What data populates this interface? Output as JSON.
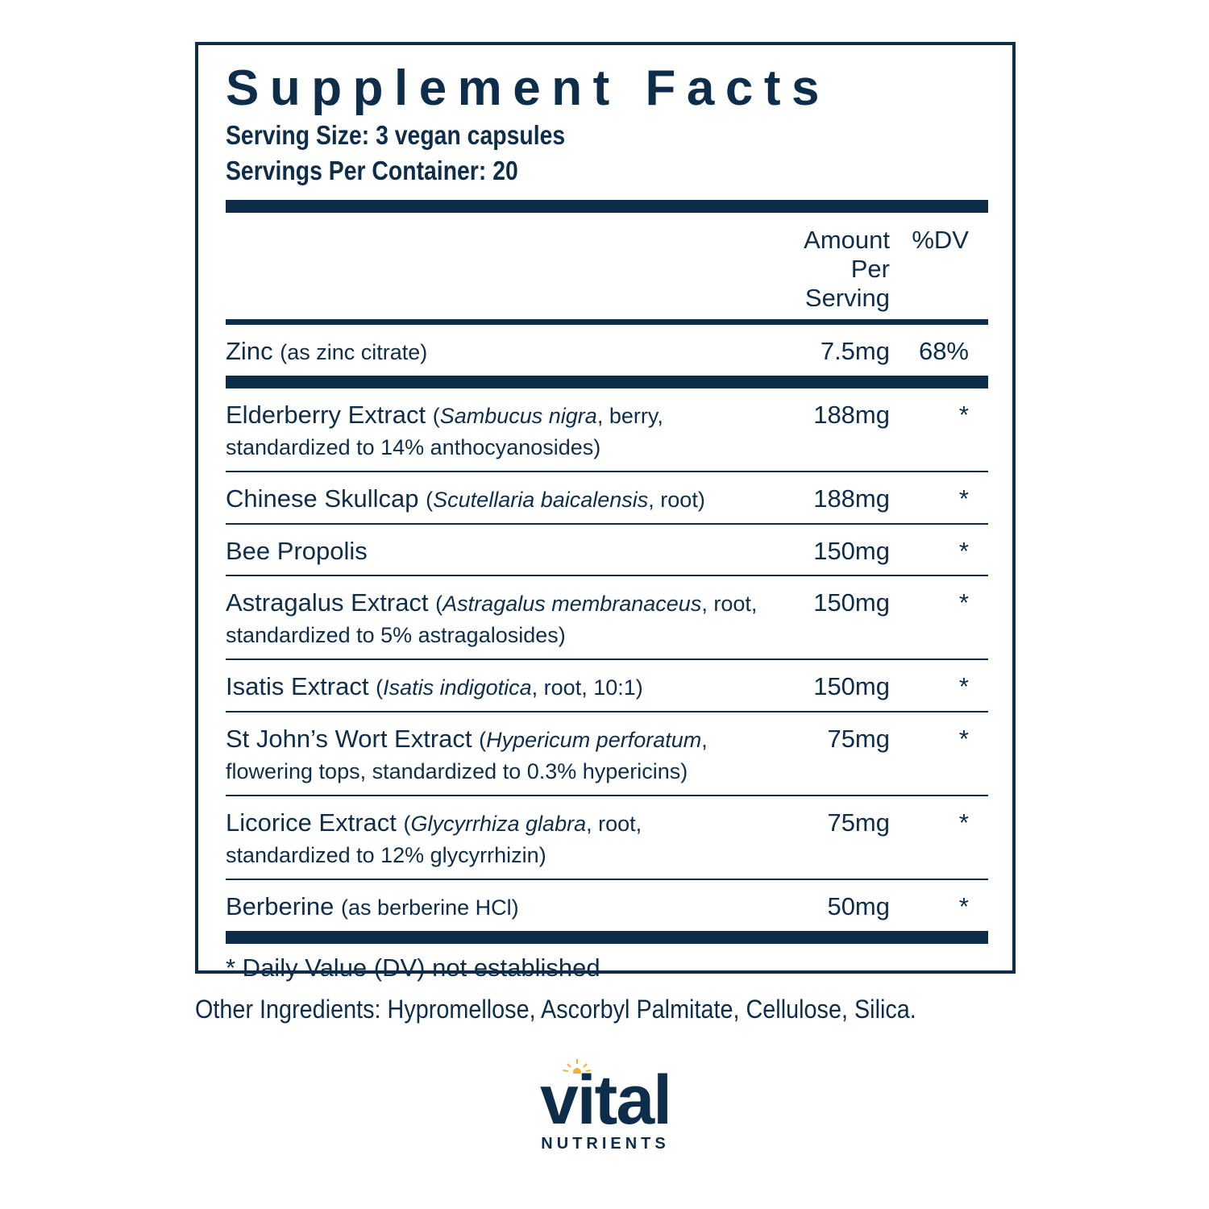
{
  "panel": {
    "title": "Supplement Facts",
    "serving_size": "Serving Size: 3 vegan capsules",
    "servings_per_container": "Servings Per Container: 20",
    "columns": {
      "amount": "Amount Per Serving",
      "dv": "%DV"
    },
    "rows": [
      {
        "name": "Zinc",
        "detail": [
          {
            "text": "(as zinc citrate)"
          }
        ],
        "amount": "7.5mg",
        "dv": "68%"
      },
      {
        "name": "Elderberry Extract",
        "detail": [
          {
            "text": "("
          },
          {
            "text": "Sambucus nigra",
            "italic": true
          },
          {
            "text": ", berry, standardized to 14% anthocyanosides)"
          }
        ],
        "amount": "188mg",
        "dv": "*"
      },
      {
        "name": "Chinese Skullcap",
        "detail": [
          {
            "text": "("
          },
          {
            "text": "Scutellaria baicalensis",
            "italic": true
          },
          {
            "text": ", root)"
          }
        ],
        "amount": "188mg",
        "dv": "*"
      },
      {
        "name": "Bee Propolis",
        "detail": [],
        "amount": "150mg",
        "dv": "*"
      },
      {
        "name": "Astragalus Extract",
        "detail": [
          {
            "text": "("
          },
          {
            "text": "Astragalus membranaceus",
            "italic": true
          },
          {
            "text": ", root, standardized to 5% astragalosides)"
          }
        ],
        "amount": "150mg",
        "dv": "*"
      },
      {
        "name": "Isatis Extract",
        "detail": [
          {
            "text": "("
          },
          {
            "text": "Isatis indigotica",
            "italic": true
          },
          {
            "text": ", root, 10:1)"
          }
        ],
        "amount": "150mg",
        "dv": "*"
      },
      {
        "name": "St John’s Wort Extract",
        "detail": [
          {
            "text": "("
          },
          {
            "text": "Hypericum perforatum",
            "italic": true
          },
          {
            "text": ", flowering tops, standardized to 0.3% hypericins)"
          }
        ],
        "amount": "75mg",
        "dv": "*"
      },
      {
        "name": "Licorice Extract",
        "detail": [
          {
            "text": "("
          },
          {
            "text": "Glycyrrhiza glabra",
            "italic": true
          },
          {
            "text": ", root, standardized to 12% glycyrrhizin)"
          }
        ],
        "amount": "75mg",
        "dv": "*"
      },
      {
        "name": "Berberine",
        "detail": [
          {
            "text": "(as berberine HCl)"
          }
        ],
        "amount": "50mg",
        "dv": "*"
      }
    ],
    "footnote": "* Daily Value (DV) not established"
  },
  "other_ingredients": "Other Ingredients: Hypromellose, Ascorbyl Palmitate, Cellulose, Silica.",
  "brand": {
    "name": "vital",
    "tagline": "NUTRIENTS"
  }
}
